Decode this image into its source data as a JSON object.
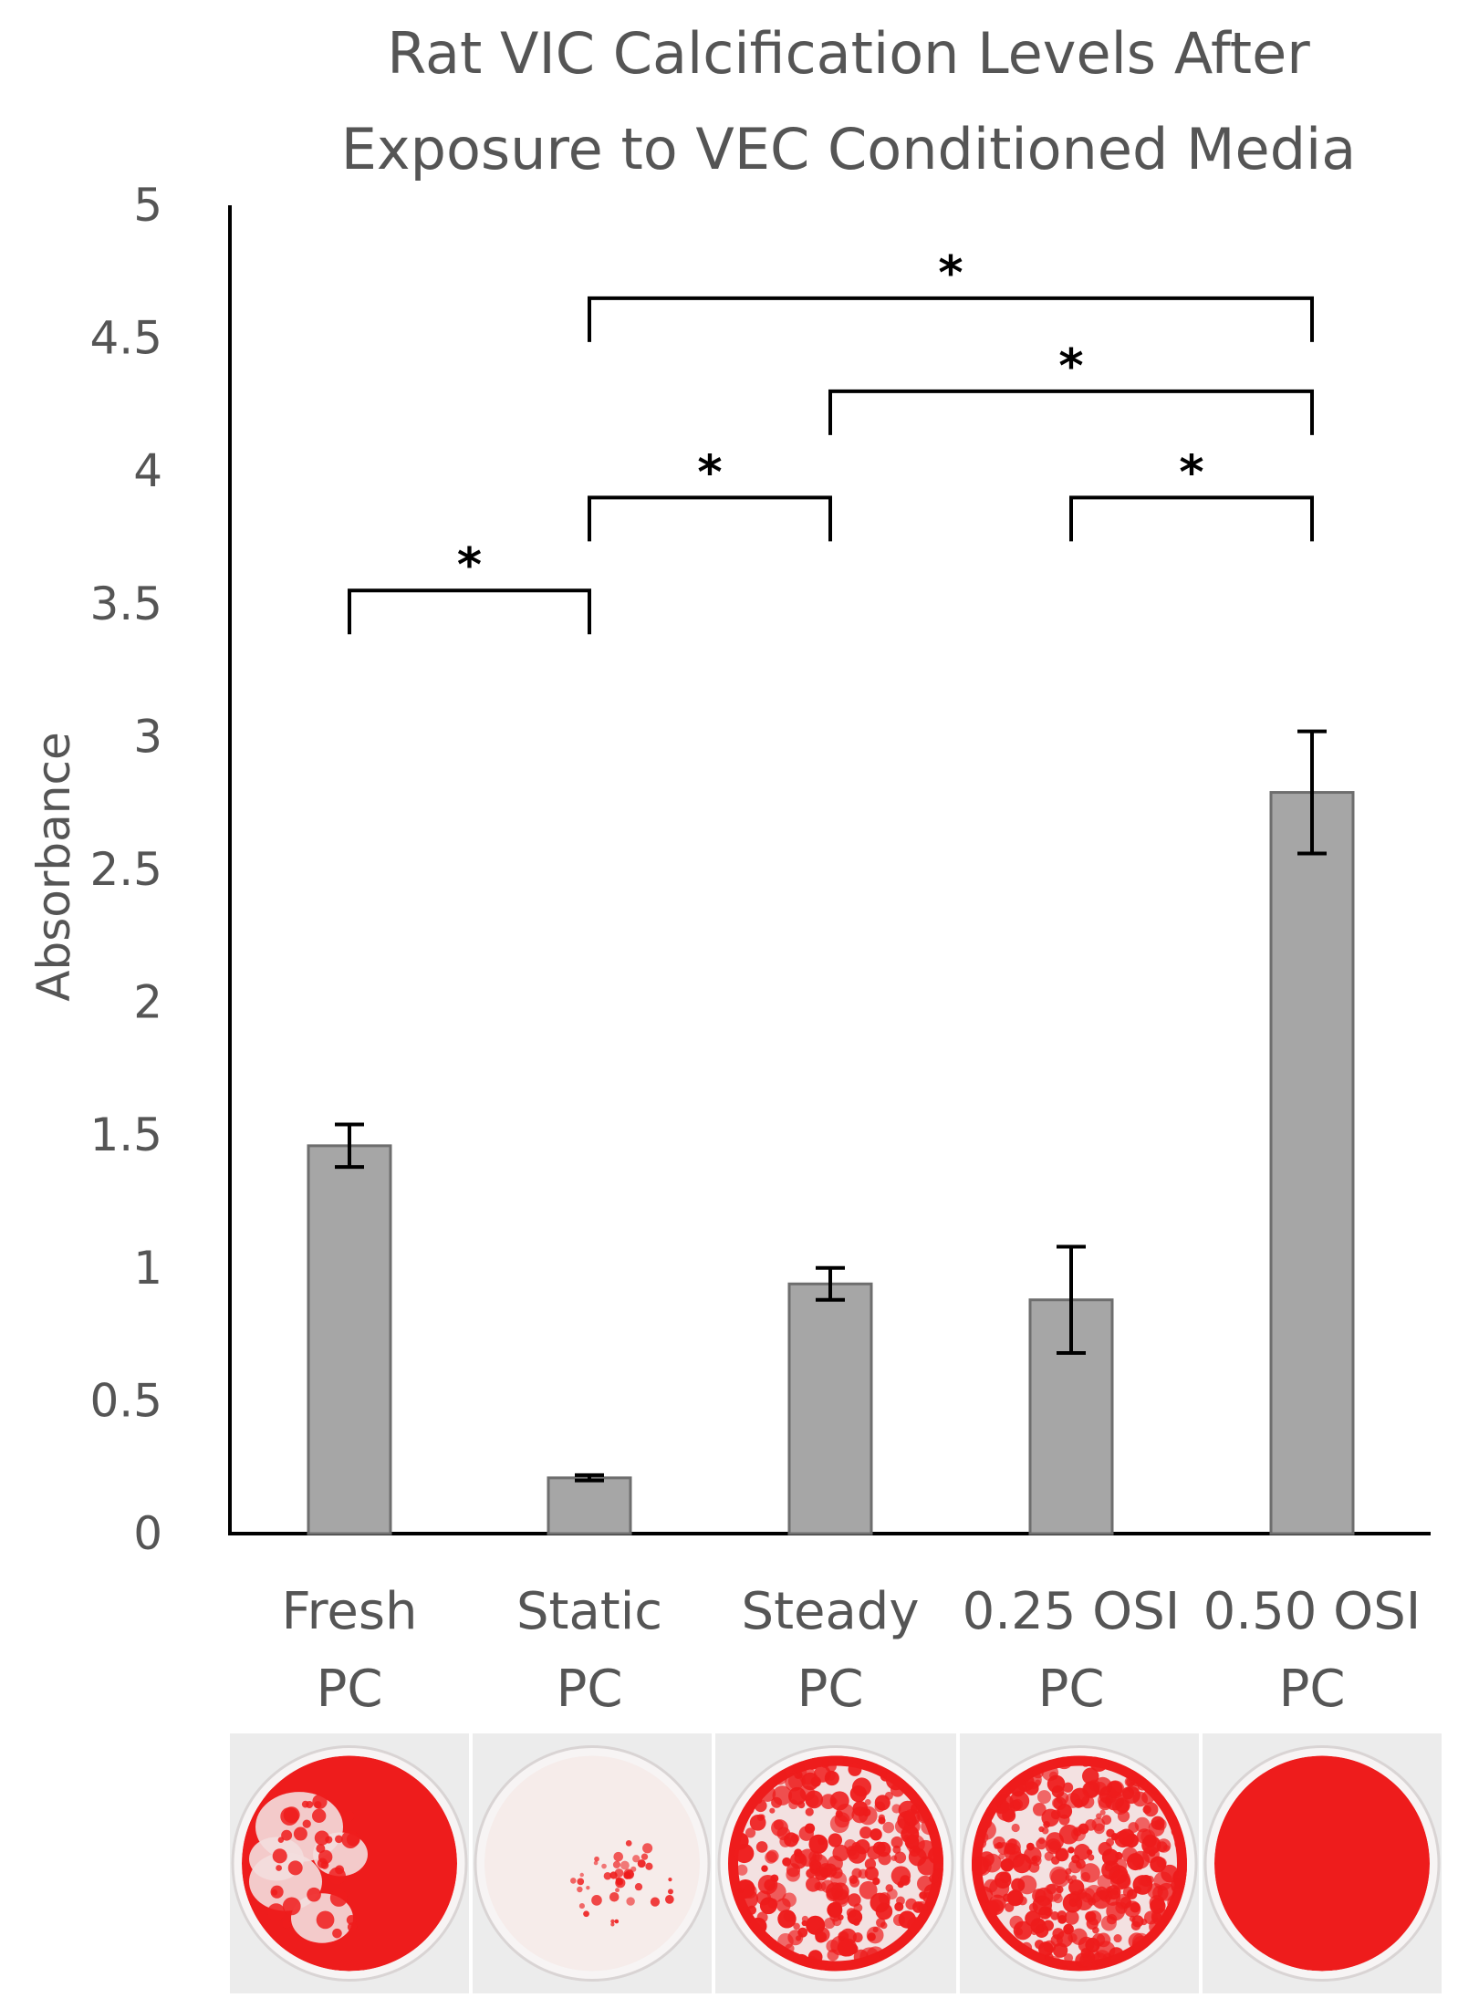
{
  "chart_data": {
    "type": "bar",
    "title_lines": [
      "Rat VIC Calcification Levels After",
      "Exposure to VEC Conditioned Media"
    ],
    "xlabel": "",
    "ylabel": "Absorbance",
    "ylim": [
      0,
      5
    ],
    "yticks": [
      "0",
      "0.5",
      "1",
      "1.5",
      "2",
      "2.5",
      "3",
      "3.5",
      "4",
      "4.5",
      "5"
    ],
    "grid": false,
    "categories": [
      {
        "line1": "Fresh",
        "line2": "PC"
      },
      {
        "line1": "Static",
        "line2": "PC"
      },
      {
        "line1": "Steady",
        "line2": "PC"
      },
      {
        "line1": "0.25 OSI",
        "line2": "PC"
      },
      {
        "line1": "0.50 OSI",
        "line2": "PC"
      }
    ],
    "values": [
      1.46,
      0.21,
      0.94,
      0.88,
      2.79
    ],
    "errors": [
      0.08,
      0.01,
      0.06,
      0.2,
      0.23
    ],
    "bar_color": "#a6a6a6",
    "bar_edge_color": "#6e6e6e",
    "significance": [
      {
        "from": 0,
        "to": 1,
        "level": 3.55,
        "label": "*"
      },
      {
        "from": 1,
        "to": 2,
        "level": 3.9,
        "label": "*"
      },
      {
        "from": 3,
        "to": 4,
        "level": 3.9,
        "label": "*"
      },
      {
        "from": 2,
        "to": 4,
        "level": 4.3,
        "label": "*"
      },
      {
        "from": 1,
        "to": 4,
        "level": 4.65,
        "label": "*"
      }
    ],
    "well_images": [
      {
        "name": "fresh-pc-well",
        "stain": "heavy-partial"
      },
      {
        "name": "static-pc-well",
        "stain": "sparse"
      },
      {
        "name": "steady-pc-well",
        "stain": "moderate"
      },
      {
        "name": "osi-025-pc-well",
        "stain": "moderate-heavy"
      },
      {
        "name": "osi-050-pc-well",
        "stain": "full"
      }
    ],
    "stain_color": "#ee1c1c"
  }
}
